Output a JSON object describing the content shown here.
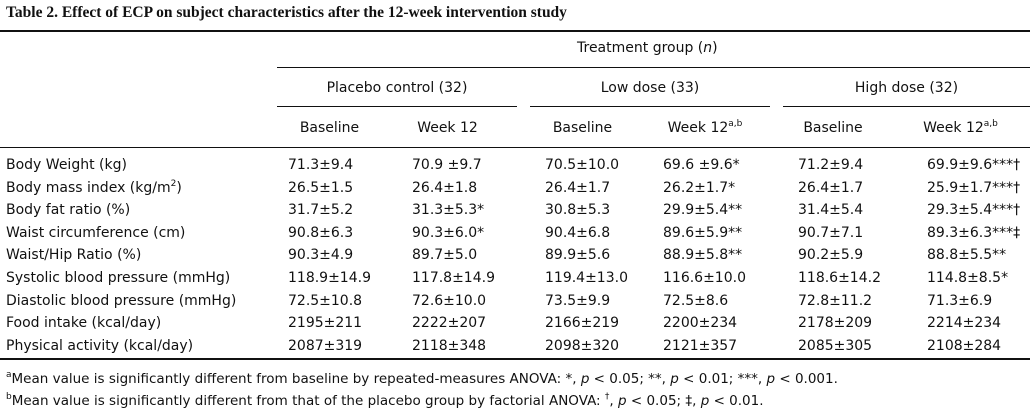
{
  "caption": "Table 2.  Effect of ECP on subject characteristics after the 12-week intervention study",
  "header": {
    "treatment_group": "Treatment group (",
    "treatment_n": "n",
    "treatment_close": ")",
    "groups": [
      "Placebo control (32)",
      "Low dose (33)",
      "High dose (32)"
    ],
    "sub": {
      "baseline": "Baseline",
      "week12": "Week 12",
      "sup": "a,b"
    }
  },
  "rows": [
    {
      "label": "Body Weight (kg)",
      "cells": [
        "71.3±9.4",
        "70.9 ±9.7",
        "70.5±10.0",
        "69.6 ±9.6*",
        "71.2±9.4",
        "69.9±9.6***†"
      ]
    },
    {
      "label": "Body mass index (kg/m",
      "label_sup": "2",
      "label_tail": ")",
      "cells": [
        "26.5±1.5",
        "26.4±1.8",
        "26.4±1.7",
        "26.2±1.7*",
        "26.4±1.7",
        "25.9±1.7***†"
      ]
    },
    {
      "label": "Body fat ratio (%)",
      "cells": [
        "31.7±5.2",
        "31.3±5.3*",
        "30.8±5.3",
        "29.9±5.4**",
        "31.4±5.4",
        "29.3±5.4***†"
      ]
    },
    {
      "label": "Waist circumference (cm)",
      "cells": [
        "90.8±6.3",
        "90.3±6.0*",
        "90.4±6.8",
        "89.6±5.9**",
        "90.7±7.1",
        "89.3±6.3***‡"
      ]
    },
    {
      "label": "Waist/Hip Ratio (%)",
      "cells": [
        "90.3±4.9",
        "89.7±5.0",
        "89.9±5.6",
        "88.9±5.8**",
        "90.2±5.9",
        "88.8±5.5**"
      ]
    },
    {
      "label": "Systolic blood pressure (mmHg)",
      "cells": [
        "118.9±14.9",
        "117.8±14.9",
        "119.4±13.0",
        "116.6±10.0",
        "118.6±14.2",
        "114.8±8.5*"
      ]
    },
    {
      "label": "Diastolic blood pressure (mmHg)",
      "cells": [
        "72.5±10.8",
        "72.6±10.0",
        "73.5±9.9",
        "72.5±8.6",
        "72.8±11.2",
        "71.3±6.9"
      ]
    },
    {
      "label": "Food intake (kcal/day)",
      "cells": [
        "2195±211",
        "2222±207",
        "2166±219",
        "2200±234",
        "2178±209",
        "2214±234"
      ]
    },
    {
      "label": "Physical activity (kcal/day)",
      "cells": [
        "2087±319",
        "2118±348",
        "2098±320",
        "2121±357",
        "2085±305",
        "2108±284"
      ]
    }
  ],
  "footnotes": {
    "a_mark": "a",
    "a_text_1": "Mean value is significantly different from baseline by repeated-measures ANOVA: *, ",
    "p": "p",
    "a_text_2": " < 0.05; **, ",
    "a_text_3": " < 0.01; ***, ",
    "a_text_4": " < 0.001.",
    "b_mark": "b",
    "b_text_1": "Mean value is significantly different from that of the placebo group by factorial ANOVA: ",
    "dagger": "†",
    "b_text_2": ", ",
    "b_text_3": " < 0.05; ‡, ",
    "b_text_4": " < 0.01."
  }
}
